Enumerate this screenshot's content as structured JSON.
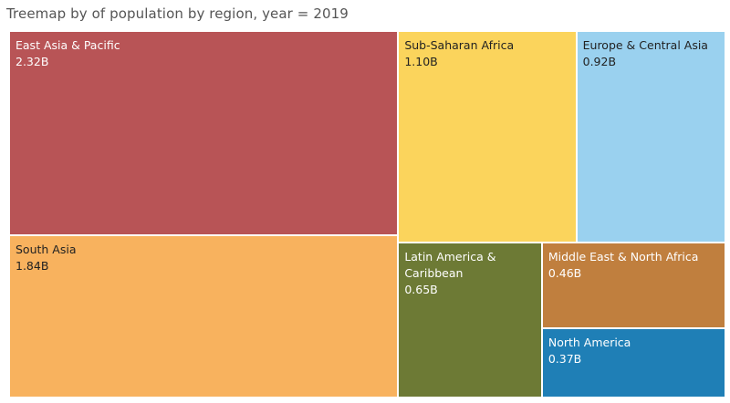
{
  "title": "Treemap by of population by region, year = 2019",
  "chart_data": {
    "type": "treemap",
    "title": "Treemap by of population by region, year = 2019",
    "unit": "B",
    "items": [
      {
        "label": "East Asia & Pacific",
        "value": 2.32,
        "display": "2.32B",
        "color": "#b85456",
        "text_color": "#ffffff"
      },
      {
        "label": "South Asia",
        "value": 1.84,
        "display": "1.84B",
        "color": "#f8b25e",
        "text_color": "#222222"
      },
      {
        "label": "Sub-Saharan Africa",
        "value": 1.1,
        "display": "1.10B",
        "color": "#fbd45c",
        "text_color": "#222222"
      },
      {
        "label": "Europe & Central Asia",
        "value": 0.92,
        "display": "0.92B",
        "color": "#9ad1ef",
        "text_color": "#222222"
      },
      {
        "label": "Latin America & Caribbean",
        "value": 0.65,
        "display": "0.65B",
        "color": "#6d7a35",
        "text_color": "#ffffff"
      },
      {
        "label": "Middle East & North Africa",
        "value": 0.46,
        "display": "0.46B",
        "color": "#c07f3e",
        "text_color": "#ffffff"
      },
      {
        "label": "North America",
        "value": 0.37,
        "display": "0.37B",
        "color": "#1f7fb6",
        "text_color": "#ffffff"
      }
    ]
  }
}
